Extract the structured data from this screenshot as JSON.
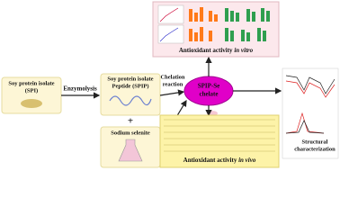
{
  "nodes": [
    {
      "lines": [
        "Soy protein isolate",
        "(SPI)"
      ]
    },
    {
      "lines": [
        "Soy protein isolate",
        "Peptide (SPIP)"
      ]
    },
    {
      "lines": [
        "Sodium selenite"
      ]
    },
    {
      "lines": [
        "SPIP-Se",
        "chelate"
      ]
    }
  ],
  "edges": [
    {
      "label": [
        "Enzymolysis"
      ]
    },
    {
      "label": [
        "Chelation",
        "reaction"
      ]
    }
  ],
  "plus": "+",
  "panels": [
    {
      "label": "Antioxidant activity",
      "italic": "in vitro"
    },
    {
      "label": "Antioxidant activity",
      "italic": "in vivo"
    },
    {
      "lines": [
        "Structural",
        "characterization"
      ]
    }
  ]
}
